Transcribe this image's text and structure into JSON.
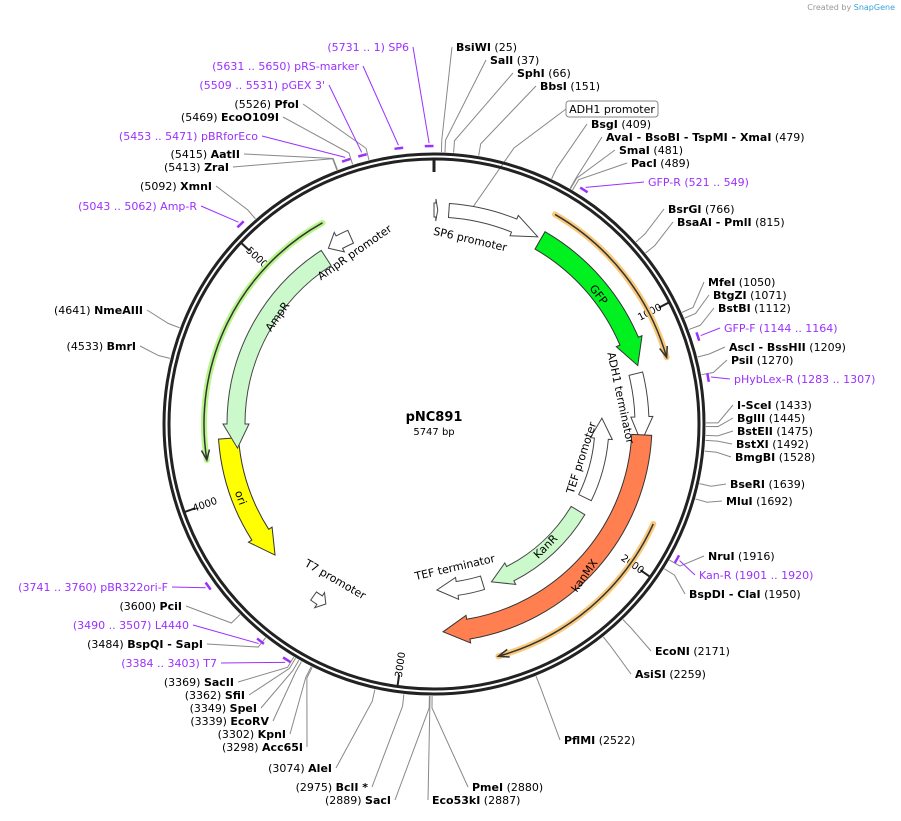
{
  "credit": {
    "prefix": "Created by",
    "brand": "SnapGene"
  },
  "plasmid": {
    "name": "pNC891",
    "length": 5747,
    "length_label": "5747 bp"
  },
  "colors": {
    "gfp": "#00f020",
    "kanmx": "#ff7f50",
    "ampr": "#ccf9cc",
    "kanr": "#ccf9cc",
    "ori": "#ffff00",
    "primer": "#9b30ff",
    "highlight_orange": "#f9c97c",
    "highlight_green": "#b8f58a"
  },
  "ticks": [
    "1000",
    "2000",
    "3000",
    "4000",
    "5000"
  ],
  "sites": [
    {
      "name": "BsiWI",
      "pos": "25"
    },
    {
      "name": "SalI",
      "pos": "37"
    },
    {
      "name": "SphI",
      "pos": "66"
    },
    {
      "name": "BbsI",
      "pos": "151"
    },
    {
      "name": "BsgI",
      "pos": "409"
    },
    {
      "name": "AvaI  - BsoBI  - TspMI  - XmaI",
      "pos": "479"
    },
    {
      "name": "SmaI",
      "pos": "481"
    },
    {
      "name": "PacI",
      "pos": "489"
    },
    {
      "name": "BsrGI",
      "pos": "766"
    },
    {
      "name": "BsaAI  - PmlI",
      "pos": "815"
    },
    {
      "name": "MfeI",
      "pos": "1050"
    },
    {
      "name": "BtgZI",
      "pos": "1071"
    },
    {
      "name": "BstBI",
      "pos": "1112"
    },
    {
      "name": "AscI  - BssHII",
      "pos": "1209"
    },
    {
      "name": "PsiI",
      "pos": "1270"
    },
    {
      "name": "I-SceI",
      "pos": "1433"
    },
    {
      "name": "BglII",
      "pos": "1445"
    },
    {
      "name": "BstEII",
      "pos": "1475"
    },
    {
      "name": "BstXI",
      "pos": "1492"
    },
    {
      "name": "BmgBI",
      "pos": "1528"
    },
    {
      "name": "BseRI",
      "pos": "1639"
    },
    {
      "name": "MluI",
      "pos": "1692"
    },
    {
      "name": "NruI",
      "pos": "1916"
    },
    {
      "name": "BspDI  - ClaI",
      "pos": "1950"
    },
    {
      "name": "EcoNI",
      "pos": "2171"
    },
    {
      "name": "AsiSI",
      "pos": "2259"
    },
    {
      "name": "PflMI",
      "pos": "2522"
    },
    {
      "name": "PmeI",
      "pos": "2880"
    },
    {
      "name": "Eco53kI",
      "pos": "2887"
    },
    {
      "name": "SacI",
      "pos": "2889"
    },
    {
      "name": "BclI *",
      "pos": "2975"
    },
    {
      "name": "AleI",
      "pos": "3074"
    },
    {
      "name": "Acc65I",
      "pos": "3298"
    },
    {
      "name": "KpnI",
      "pos": "3302"
    },
    {
      "name": "EcoRV",
      "pos": "3339"
    },
    {
      "name": "SpeI",
      "pos": "3349"
    },
    {
      "name": "SfiI",
      "pos": "3362"
    },
    {
      "name": "SacII",
      "pos": "3369"
    },
    {
      "name": "BspQI  - SapI",
      "pos": "3484"
    },
    {
      "name": "PciI",
      "pos": "3600"
    },
    {
      "name": "BmrI",
      "pos": "4533"
    },
    {
      "name": "NmeAIII",
      "pos": "4641"
    },
    {
      "name": "XmnI",
      "pos": "5092"
    },
    {
      "name": "ZraI",
      "pos": "5413"
    },
    {
      "name": "AatII",
      "pos": "5415"
    },
    {
      "name": "EcoO109I",
      "pos": "5469"
    },
    {
      "name": "PfoI",
      "pos": "5526"
    }
  ],
  "primers": [
    {
      "name": "GFP-R",
      "range": "521 .. 549",
      "start": 521
    },
    {
      "name": "GFP-F",
      "range": "1144 .. 1164",
      "start": 1144
    },
    {
      "name": "pHybLex-R",
      "range": "1283 .. 1307",
      "start": 1283
    },
    {
      "name": "Kan-R",
      "range": "1901 .. 1920",
      "start": 1901
    },
    {
      "name": "T7",
      "range": "3384 .. 3403",
      "start": 3384
    },
    {
      "name": "L4440",
      "range": "3490 .. 3507",
      "start": 3490
    },
    {
      "name": "pBR322ori-F",
      "range": "3741 .. 3760",
      "start": 3741
    },
    {
      "name": "Amp-R",
      "range": "5043 .. 5062",
      "start": 5043
    },
    {
      "name": "pBRforEco",
      "range": "5453 .. 5471",
      "start": 5453
    },
    {
      "name": "pGEX 3'",
      "range": "5509 .. 5531",
      "start": 5509
    },
    {
      "name": "pRS-marker",
      "range": "5631 .. 5650",
      "start": 5631
    },
    {
      "name": "SP6",
      "range": "5731 .. 1",
      "start": 5731
    }
  ],
  "features": [
    {
      "name": "SP6 promoter"
    },
    {
      "name": "GFP"
    },
    {
      "name": "ADH1 terminator"
    },
    {
      "name": "TEF promoter"
    },
    {
      "name": "KanR"
    },
    {
      "name": "kanMX"
    },
    {
      "name": "TEF terminator"
    },
    {
      "name": "T7 promoter"
    },
    {
      "name": "ori"
    },
    {
      "name": "AmpR"
    },
    {
      "name": "AmpR promoter"
    },
    {
      "name": "ADH1 promoter"
    }
  ]
}
